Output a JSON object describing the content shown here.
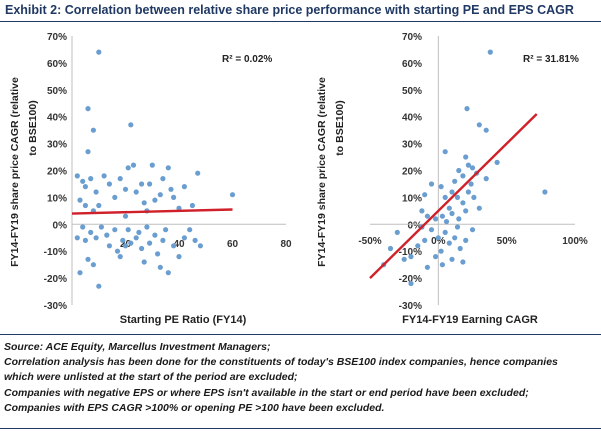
{
  "header": {
    "title": "Exhibit 2: Correlation between relative share price performance with starting PE and EPS CAGR"
  },
  "chart_data": [
    {
      "type": "scatter",
      "title": "",
      "xlabel": "Starting PE Ratio (FY14)",
      "ylabel": "FY14-FY19 share price CAGR (relative to BSE100)",
      "annotation": "R² = 0.02%",
      "xlim": [
        0,
        80
      ],
      "ylim": [
        -0.3,
        0.7
      ],
      "x_ticks": [
        20,
        40,
        60,
        80
      ],
      "x_tick_labels": [
        "20",
        "40",
        "60",
        "80"
      ],
      "y_ticks": [
        0.7,
        0.6,
        0.5,
        0.4,
        0.3,
        0.2,
        0.1,
        0,
        -0.1,
        -0.2,
        -0.3
      ],
      "y_tick_labels": [
        "70%",
        "60%",
        "50%",
        "40%",
        "30%",
        "20%",
        "10%",
        "0%",
        "-10%",
        "-20%",
        "-30%"
      ],
      "trendline": {
        "x": [
          0,
          60
        ],
        "y": [
          0.04,
          0.055
        ],
        "color": "#d0202a"
      },
      "point_color": "#6a9ed0",
      "points": [
        [
          10,
          0.64
        ],
        [
          6,
          0.43
        ],
        [
          8,
          0.35
        ],
        [
          22,
          0.37
        ],
        [
          6,
          0.27
        ],
        [
          2,
          0.18
        ],
        [
          4,
          0.16
        ],
        [
          5,
          0.14
        ],
        [
          7,
          0.17
        ],
        [
          9,
          0.12
        ],
        [
          3,
          0.09
        ],
        [
          5,
          0.07
        ],
        [
          8,
          0.05
        ],
        [
          10,
          0.07
        ],
        [
          12,
          0.18
        ],
        [
          14,
          0.15
        ],
        [
          16,
          0.1
        ],
        [
          18,
          0.17
        ],
        [
          20,
          0.13
        ],
        [
          21,
          0.21
        ],
        [
          23,
          0.22
        ],
        [
          24,
          0.12
        ],
        [
          26,
          0.15
        ],
        [
          27,
          0.08
        ],
        [
          29,
          0.15
        ],
        [
          30,
          0.22
        ],
        [
          31,
          0.09
        ],
        [
          33,
          0.11
        ],
        [
          34,
          0.17
        ],
        [
          36,
          0.21
        ],
        [
          37,
          0.13
        ],
        [
          38,
          0.1
        ],
        [
          40,
          0.06
        ],
        [
          42,
          0.14
        ],
        [
          45,
          0.07
        ],
        [
          47,
          0.19
        ],
        [
          60,
          0.11
        ],
        [
          28,
          0.05
        ],
        [
          20,
          0.03
        ],
        [
          2,
          -0.05
        ],
        [
          4,
          -0.01
        ],
        [
          5,
          -0.06
        ],
        [
          7,
          -0.03
        ],
        [
          9,
          -0.05
        ],
        [
          11,
          -0.01
        ],
        [
          13,
          -0.04
        ],
        [
          14,
          -0.08
        ],
        [
          16,
          -0.02
        ],
        [
          17,
          -0.1
        ],
        [
          19,
          -0.06
        ],
        [
          20,
          -0.08
        ],
        [
          21,
          -0.02
        ],
        [
          22,
          -0.07
        ],
        [
          24,
          -0.05
        ],
        [
          25,
          -0.03
        ],
        [
          26,
          -0.09
        ],
        [
          28,
          -0.01
        ],
        [
          29,
          -0.07
        ],
        [
          31,
          -0.04
        ],
        [
          32,
          -0.11
        ],
        [
          34,
          -0.06
        ],
        [
          35,
          -0.02
        ],
        [
          38,
          -0.08
        ],
        [
          40,
          -0.12
        ],
        [
          42,
          -0.05
        ],
        [
          44,
          -0.02
        ],
        [
          46,
          -0.06
        ],
        [
          33,
          -0.16
        ],
        [
          36,
          -0.18
        ],
        [
          48,
          -0.08
        ],
        [
          6,
          -0.13
        ],
        [
          8,
          -0.15
        ],
        [
          3,
          -0.18
        ],
        [
          10,
          -0.23
        ],
        [
          18,
          -0.12
        ],
        [
          27,
          -0.14
        ]
      ]
    },
    {
      "type": "scatter",
      "title": "",
      "xlabel": "FY14-FY19 Earning CAGR",
      "ylabel": "FY14-FY19 share price CAGR (relative to BSE100)",
      "annotation": "R² = 31.81%",
      "xlim": [
        -0.5,
        1.0
      ],
      "ylim": [
        -0.3,
        0.7
      ],
      "x_ticks": [
        -0.5,
        0,
        0.5,
        1.0
      ],
      "x_tick_labels": [
        "-50%",
        "0%",
        "50%",
        "100%"
      ],
      "y_ticks": [
        0.7,
        0.6,
        0.5,
        0.4,
        0.3,
        0.2,
        0.1,
        0,
        -0.1,
        -0.2,
        -0.3
      ],
      "y_tick_labels": [
        "70%",
        "60%",
        "50%",
        "40%",
        "30%",
        "20%",
        "10%",
        "0%",
        "-10%",
        "-20%",
        "-30%"
      ],
      "trendline": {
        "x": [
          -0.5,
          0.72
        ],
        "y": [
          -0.2,
          0.41
        ],
        "color": "#d0202a"
      },
      "point_color": "#6a9ed0",
      "points": [
        [
          0.38,
          0.64
        ],
        [
          0.21,
          0.43
        ],
        [
          0.3,
          0.37
        ],
        [
          0.35,
          0.35
        ],
        [
          0.43,
          0.23
        ],
        [
          0.78,
          0.12
        ],
        [
          0.05,
          0.27
        ],
        [
          0.2,
          0.25
        ],
        [
          0.22,
          0.22
        ],
        [
          0.25,
          0.21
        ],
        [
          0.28,
          0.19
        ],
        [
          0.24,
          0.15
        ],
        [
          0.18,
          0.18
        ],
        [
          0.15,
          0.2
        ],
        [
          0.12,
          0.16
        ],
        [
          0.1,
          0.12
        ],
        [
          0.14,
          0.1
        ],
        [
          0.18,
          0.08
        ],
        [
          0.22,
          0.12
        ],
        [
          0.26,
          0.1
        ],
        [
          0.3,
          0.06
        ],
        [
          0.08,
          0.06
        ],
        [
          0.05,
          0.1
        ],
        [
          0.02,
          0.14
        ],
        [
          -0.05,
          0.15
        ],
        [
          -0.1,
          0.11
        ],
        [
          0.03,
          0.03
        ],
        [
          0.06,
          0.01
        ],
        [
          0.1,
          0.04
        ],
        [
          0.15,
          0.02
        ],
        [
          0.2,
          0.05
        ],
        [
          -0.02,
          0.02
        ],
        [
          -0.08,
          0.03
        ],
        [
          -0.12,
          0.05
        ],
        [
          -0.05,
          -0.02
        ],
        [
          0.0,
          -0.05
        ],
        [
          0.05,
          -0.03
        ],
        [
          0.08,
          -0.07
        ],
        [
          0.12,
          -0.05
        ],
        [
          0.16,
          -0.09
        ],
        [
          0.2,
          -0.06
        ],
        [
          0.25,
          -0.02
        ],
        [
          0.02,
          -0.1
        ],
        [
          -0.1,
          -0.06
        ],
        [
          -0.15,
          -0.08
        ],
        [
          -0.2,
          -0.12
        ],
        [
          -0.02,
          -0.12
        ],
        [
          0.03,
          -0.15
        ],
        [
          -0.08,
          -0.16
        ],
        [
          -0.25,
          -0.13
        ],
        [
          -0.3,
          -0.03
        ],
        [
          -0.35,
          -0.09
        ],
        [
          -0.4,
          -0.15
        ],
        [
          -0.2,
          -0.22
        ],
        [
          0.1,
          -0.13
        ],
        [
          0.18,
          -0.14
        ],
        [
          -0.12,
          -0.01
        ],
        [
          0.35,
          0.17
        ],
        [
          0.14,
          -0.01
        ]
      ]
    }
  ],
  "footer": {
    "line1": "Source: ACE Equity, Marcellus Investment Managers;",
    "line2": "Correlation analysis has been done for the constituents of today's BSE100 index companies, hence companies",
    "line3": "which were unlisted at the start of the period are excluded;",
    "line4": "Companies with negative EPS or where EPS isn't available in the start or end period have been excluded;",
    "line5": "Companies with EPS CAGR >100% or opening PE >100 have been excluded."
  }
}
